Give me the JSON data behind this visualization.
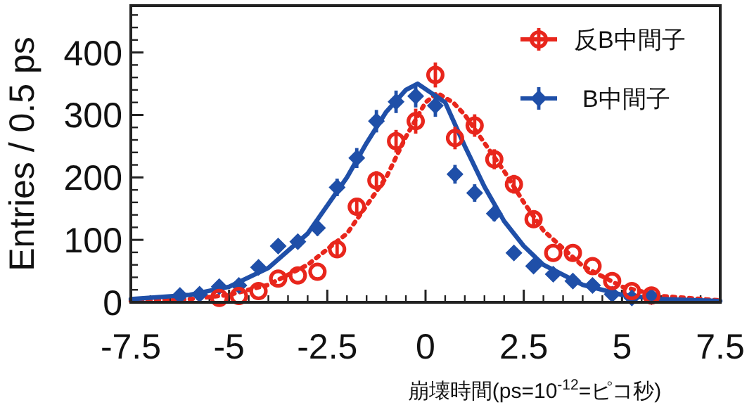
{
  "chart_data": {
    "type": "scatter",
    "xlabel": "崩壊時間(ps=10$^{-12}$=ピコ秒)",
    "ylabel": "Entries / 0.5 ps",
    "xlim": [
      -7.5,
      7.5
    ],
    "xticks": [
      -7.5,
      -5,
      -2.5,
      0,
      2.5,
      5,
      7.5
    ],
    "ylim": [
      0,
      475
    ],
    "yticks": [
      0,
      100,
      200,
      300,
      400
    ],
    "legend": "top right",
    "grid": false,
    "series": [
      {
        "type": "line",
        "color": "#e8261c",
        "line_style": "dotted",
        "x": [
          -7.5,
          -6,
          -5,
          -4,
          -3,
          -2,
          -1,
          -0.5,
          0,
          0.3,
          0.7,
          1,
          1.5,
          2,
          2.5,
          3,
          4,
          5,
          6,
          7.5
        ],
        "values": [
          2,
          5,
          12,
          28,
          60,
          110,
          200,
          265,
          320,
          335,
          320,
          300,
          255,
          210,
          160,
          115,
          58,
          25,
          10,
          3
        ]
      },
      {
        "type": "line",
        "color": "#1f4fa8",
        "line_style": "solid",
        "x": [
          -7.5,
          -6,
          -5,
          -4,
          -3,
          -2,
          -1.5,
          -1,
          -0.5,
          -0.2,
          0.5,
          1,
          1.5,
          2,
          2.5,
          3,
          4,
          5,
          6,
          7.5
        ],
        "values": [
          5,
          12,
          25,
          55,
          110,
          200,
          255,
          305,
          340,
          350,
          320,
          250,
          185,
          130,
          90,
          60,
          28,
          12,
          5,
          2
        ]
      },
      {
        "type": "scatter",
        "name": "反B中間子",
        "color": "#e8261c",
        "marker": "circle",
        "x": [
          -5.25,
          -4.75,
          -4.25,
          -3.75,
          -3.25,
          -2.75,
          -2.25,
          -1.75,
          -1.25,
          -0.75,
          -0.25,
          0.25,
          0.75,
          1.25,
          1.75,
          2.25,
          2.75,
          3.25,
          3.75,
          4.25,
          4.75,
          5.25,
          5.75
        ],
        "values": [
          7,
          10,
          18,
          38,
          43,
          49,
          85,
          153,
          195,
          258,
          290,
          364,
          263,
          283,
          229,
          189,
          133,
          79,
          79,
          58,
          34,
          18,
          11
        ],
        "errors": [
          null,
          null,
          null,
          null,
          null,
          null,
          12,
          14,
          15,
          18,
          20,
          20,
          18,
          18,
          16,
          15,
          13,
          null,
          null,
          null,
          null,
          null,
          null
        ]
      },
      {
        "type": "scatter",
        "name": "B中間子",
        "color": "#1f4fa8",
        "marker": "diamond",
        "x": [
          -6.25,
          -5.75,
          -5.25,
          -4.75,
          -4.25,
          -3.75,
          -3.25,
          -2.75,
          -2.25,
          -1.75,
          -1.25,
          -0.75,
          -0.25,
          0.25,
          0.75,
          1.25,
          1.75,
          2.25,
          2.75,
          3.25,
          3.75,
          4.25,
          4.75,
          5.25,
          5.75
        ],
        "values": [
          11,
          13,
          25,
          27,
          56,
          90,
          97,
          119,
          184,
          231,
          290,
          321,
          330,
          315,
          205,
          175,
          142,
          79,
          58,
          45,
          34,
          27,
          13,
          7,
          9
        ],
        "errors": [
          null,
          null,
          null,
          null,
          null,
          null,
          null,
          12,
          14,
          16,
          18,
          18,
          18,
          18,
          15,
          14,
          12,
          null,
          null,
          null,
          null,
          null,
          null,
          null,
          null
        ]
      }
    ]
  }
}
